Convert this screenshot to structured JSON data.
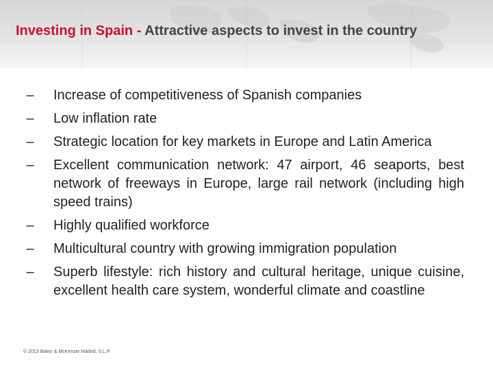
{
  "header": {
    "title_accent": "Investing in Spain - ",
    "title_rest": "Attractive aspects to invest in the country"
  },
  "bullets": [
    "Increase of competitiveness of Spanish companies",
    "Low inflation rate",
    "Strategic location for key markets in Europe and Latin America",
    "Excellent communication network: 47 airport, 46 seaports, best network of freeways in Europe, large rail network (including high speed trains)",
    "Highly qualified workforce",
    "Multicultural country with growing immigration population",
    "Superb lifestyle: rich history and cultural heritage, unique cuisine, excellent health care system, wonderful climate and coastline"
  ],
  "bullet_marker": "–",
  "footer": {
    "copyright": "© 2013 Baker & McKenzie Madrid, S.L.P."
  },
  "colors": {
    "title_accent": "#c8102e",
    "title_text": "#444444",
    "body_text": "#222222"
  }
}
